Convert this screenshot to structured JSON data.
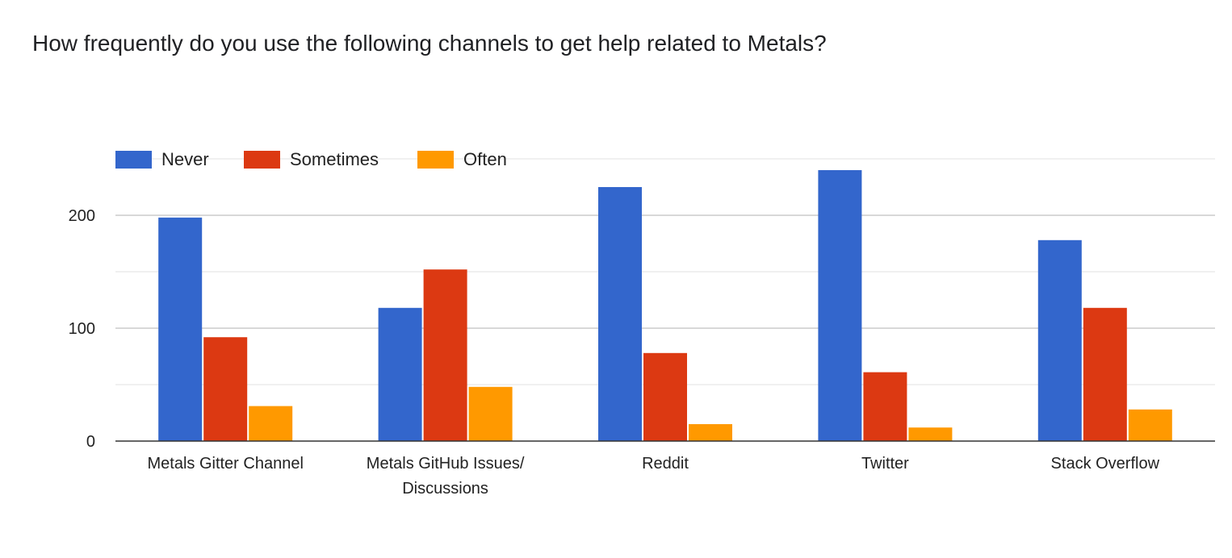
{
  "chart_data": {
    "type": "bar",
    "title": "How frequently do you use the following channels to get help related to Metals?",
    "categories": [
      [
        "Metals Gitter Channel"
      ],
      [
        "Metals GitHub Issues/",
        "Discussions"
      ],
      [
        "Reddit"
      ],
      [
        "Twitter"
      ],
      [
        "Stack Overflow"
      ]
    ],
    "series": [
      {
        "name": "Never",
        "color": "#3366cc",
        "values": [
          198,
          118,
          225,
          240,
          178
        ]
      },
      {
        "name": "Sometimes",
        "color": "#dc3912",
        "values": [
          92,
          152,
          78,
          61,
          118
        ]
      },
      {
        "name": "Often",
        "color": "#ff9900",
        "values": [
          31,
          48,
          15,
          12,
          28
        ]
      }
    ],
    "y_ticks": [
      0,
      100,
      200
    ],
    "ylim": [
      0,
      250
    ],
    "xlabel": "",
    "ylabel": "",
    "legend_position": "top-left",
    "grid": true
  }
}
